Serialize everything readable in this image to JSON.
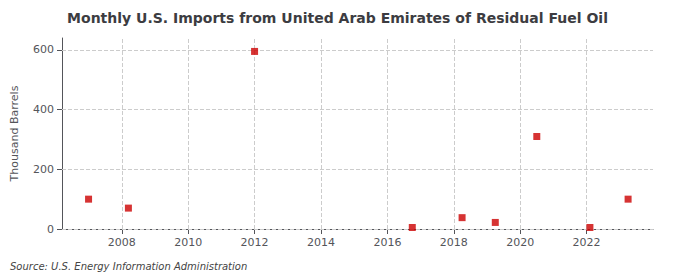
{
  "chart_data": {
    "type": "scatter",
    "title": "Monthly U.S. Imports from United Arab Emirates of Residual Fuel Oil",
    "ylabel": "Thousand Barrels",
    "annotation": "Source: U.S. Energy Information Administration",
    "x": [
      2007.0,
      2008.2,
      2012.0,
      2016.75,
      2018.25,
      2019.25,
      2020.5,
      2022.1,
      2023.25
    ],
    "values": [
      100,
      70,
      595,
      5,
      38,
      22,
      310,
      5,
      100
    ],
    "color": "#cc0000",
    "marker": "square",
    "xlim": [
      2006.2,
      2024.0
    ],
    "ylim": [
      0,
      640
    ],
    "xticks": [
      2008,
      2010,
      2012,
      2014,
      2016,
      2018,
      2020,
      2022
    ],
    "yticks": [
      0,
      200,
      400,
      600
    ],
    "grid": true
  }
}
